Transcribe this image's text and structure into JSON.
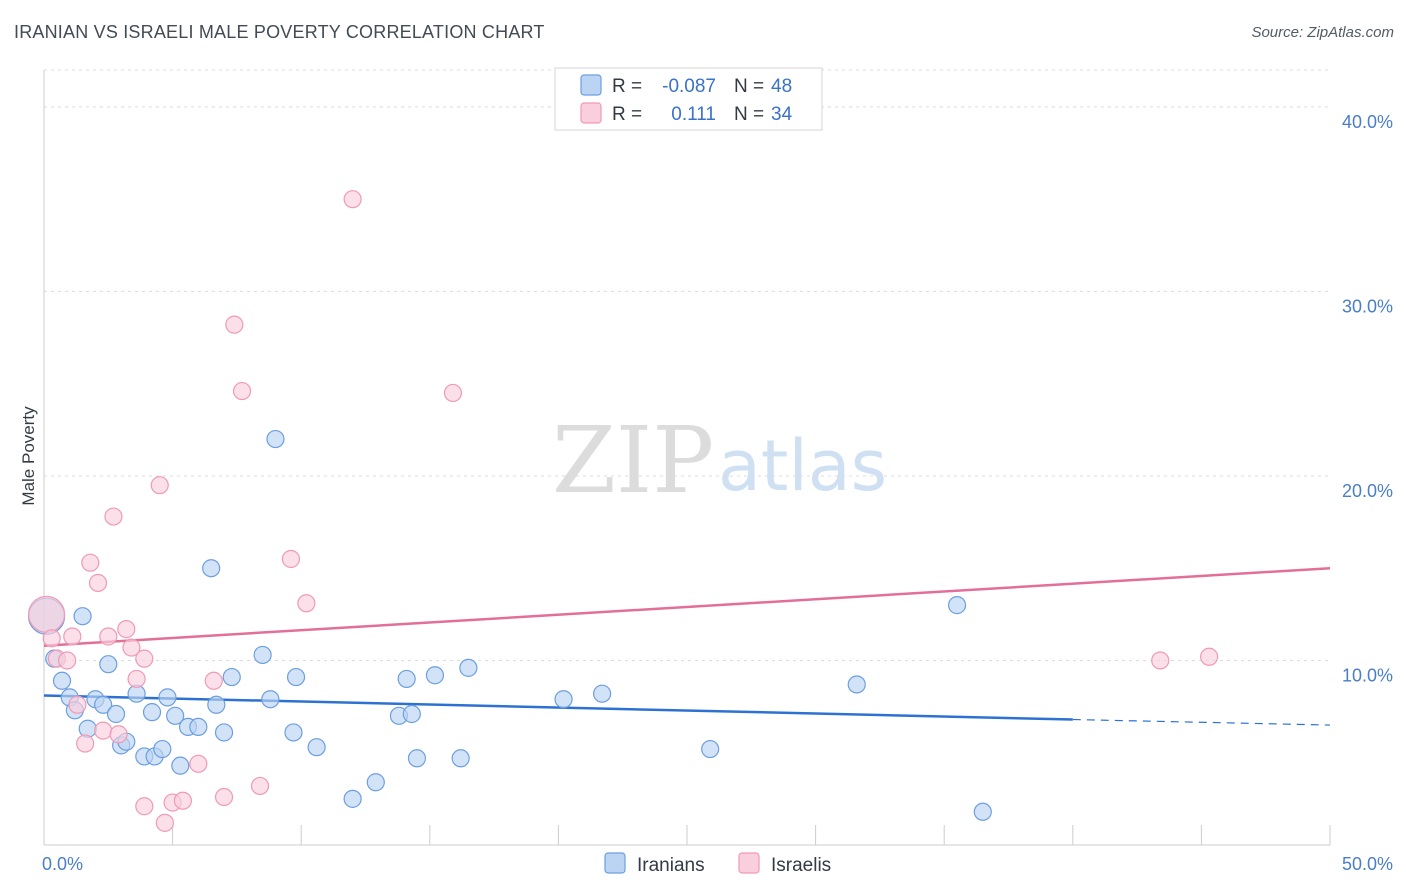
{
  "title": "IRANIAN VS ISRAELI MALE POVERTY CORRELATION CHART",
  "source": "Source: ZipAtlas.com",
  "watermark": {
    "zip": "ZIP",
    "atlas": "atlas"
  },
  "chart_data": {
    "type": "scatter",
    "ylabel": "Male Poverty",
    "xlim": [
      0,
      50
    ],
    "ylim": [
      0,
      42
    ],
    "x_tick_labels": [
      {
        "value": 0,
        "label": "0.0%"
      },
      {
        "value": 50,
        "label": "50.0%"
      }
    ],
    "y_tick_labels": [
      {
        "value": 10,
        "label": "10.0%"
      },
      {
        "value": 20,
        "label": "20.0%"
      },
      {
        "value": 30,
        "label": "30.0%"
      },
      {
        "value": 40,
        "label": "40.0%"
      }
    ],
    "grid": true,
    "legend_placement": "top-center",
    "series": [
      {
        "name": "Iranians",
        "color": "#6c9fe0",
        "fill": "#bcd4f3",
        "line_color": "#2d72d2",
        "R": "-0.087",
        "N": "48",
        "trend": {
          "x": [
            0,
            40,
            50
          ],
          "y": [
            8.1,
            6.8,
            6.5
          ],
          "solid_until": 40
        },
        "points": [
          {
            "x": 0.1,
            "y": 12.4,
            "big": true
          },
          {
            "x": 0.4,
            "y": 10.1
          },
          {
            "x": 0.7,
            "y": 8.9
          },
          {
            "x": 1.0,
            "y": 8.0
          },
          {
            "x": 1.2,
            "y": 7.3
          },
          {
            "x": 1.5,
            "y": 12.4
          },
          {
            "x": 1.7,
            "y": 6.3
          },
          {
            "x": 2.0,
            "y": 7.9
          },
          {
            "x": 2.3,
            "y": 7.6
          },
          {
            "x": 2.5,
            "y": 9.8
          },
          {
            "x": 2.8,
            "y": 7.1
          },
          {
            "x": 3.0,
            "y": 5.4
          },
          {
            "x": 3.2,
            "y": 5.6
          },
          {
            "x": 3.6,
            "y": 8.2
          },
          {
            "x": 3.9,
            "y": 4.8
          },
          {
            "x": 4.2,
            "y": 7.2
          },
          {
            "x": 4.3,
            "y": 4.8
          },
          {
            "x": 4.6,
            "y": 5.2
          },
          {
            "x": 4.8,
            "y": 8.0
          },
          {
            "x": 5.1,
            "y": 7.0
          },
          {
            "x": 5.3,
            "y": 4.3
          },
          {
            "x": 5.6,
            "y": 6.4
          },
          {
            "x": 6.0,
            "y": 6.4
          },
          {
            "x": 6.5,
            "y": 15.0
          },
          {
            "x": 6.7,
            "y": 7.6
          },
          {
            "x": 7.0,
            "y": 6.1
          },
          {
            "x": 7.3,
            "y": 9.1
          },
          {
            "x": 8.5,
            "y": 10.3
          },
          {
            "x": 8.8,
            "y": 7.9
          },
          {
            "x": 9.0,
            "y": 22.0
          },
          {
            "x": 9.7,
            "y": 6.1
          },
          {
            "x": 9.8,
            "y": 9.1
          },
          {
            "x": 10.6,
            "y": 5.3
          },
          {
            "x": 12.0,
            "y": 2.5
          },
          {
            "x": 12.9,
            "y": 3.4
          },
          {
            "x": 13.8,
            "y": 7.0
          },
          {
            "x": 14.1,
            "y": 9.0
          },
          {
            "x": 14.3,
            "y": 7.1
          },
          {
            "x": 14.5,
            "y": 4.7
          },
          {
            "x": 15.2,
            "y": 9.2
          },
          {
            "x": 16.2,
            "y": 4.7
          },
          {
            "x": 16.5,
            "y": 9.6
          },
          {
            "x": 20.2,
            "y": 7.9
          },
          {
            "x": 21.7,
            "y": 8.2
          },
          {
            "x": 25.9,
            "y": 5.2
          },
          {
            "x": 31.6,
            "y": 8.7
          },
          {
            "x": 35.5,
            "y": 13.0
          },
          {
            "x": 36.5,
            "y": 1.8
          }
        ]
      },
      {
        "name": "Israelis",
        "color": "#f09ab6",
        "fill": "#f9cfdd",
        "line_color": "#e36f98",
        "R": "0.111",
        "N": "34",
        "trend": {
          "x": [
            0,
            50
          ],
          "y": [
            10.8,
            15.0
          ],
          "solid_until": 50
        },
        "points": [
          {
            "x": 0.1,
            "y": 12.5,
            "big": true
          },
          {
            "x": 0.3,
            "y": 11.2
          },
          {
            "x": 0.5,
            "y": 10.1
          },
          {
            "x": 0.9,
            "y": 10.0
          },
          {
            "x": 1.1,
            "y": 11.3
          },
          {
            "x": 1.3,
            "y": 7.6
          },
          {
            "x": 1.6,
            "y": 5.5
          },
          {
            "x": 1.8,
            "y": 15.3
          },
          {
            "x": 2.1,
            "y": 14.2
          },
          {
            "x": 2.3,
            "y": 6.2
          },
          {
            "x": 2.5,
            "y": 11.3
          },
          {
            "x": 2.7,
            "y": 17.8
          },
          {
            "x": 2.9,
            "y": 6.0
          },
          {
            "x": 3.2,
            "y": 11.7
          },
          {
            "x": 3.4,
            "y": 10.7
          },
          {
            "x": 3.6,
            "y": 9.0
          },
          {
            "x": 3.9,
            "y": 10.1
          },
          {
            "x": 3.9,
            "y": 2.1
          },
          {
            "x": 4.5,
            "y": 19.5
          },
          {
            "x": 4.7,
            "y": 1.2
          },
          {
            "x": 5.0,
            "y": 2.3
          },
          {
            "x": 5.4,
            "y": 2.4
          },
          {
            "x": 6.0,
            "y": 4.4
          },
          {
            "x": 6.6,
            "y": 8.9
          },
          {
            "x": 7.0,
            "y": 2.6
          },
          {
            "x": 7.4,
            "y": 28.2
          },
          {
            "x": 7.7,
            "y": 24.6
          },
          {
            "x": 8.4,
            "y": 3.2
          },
          {
            "x": 9.6,
            "y": 15.5
          },
          {
            "x": 10.2,
            "y": 13.1
          },
          {
            "x": 12.0,
            "y": 35.0
          },
          {
            "x": 15.9,
            "y": 24.5
          },
          {
            "x": 43.4,
            "y": 10.0
          },
          {
            "x": 45.3,
            "y": 10.2
          }
        ]
      }
    ]
  }
}
